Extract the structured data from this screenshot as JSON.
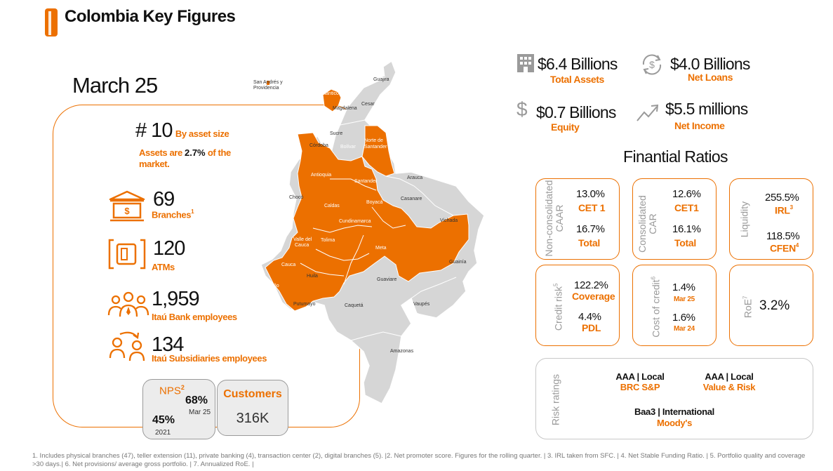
{
  "header": {
    "title": "Colombia Key Figures"
  },
  "date": "March 25",
  "rank": {
    "value": "# 10",
    "label": "By asset size",
    "share_prefix": "Assets are ",
    "share_value": "2.7%",
    "share_suffix": " of the",
    "share_line2": "market."
  },
  "branches": {
    "value": "69",
    "label": "Branches",
    "note": "1"
  },
  "atms": {
    "value": "120",
    "label": "ATMs"
  },
  "employees": {
    "value": "1,959",
    "label": "Itaú Bank employees"
  },
  "subsidiaries": {
    "value": "134",
    "label": "Itaú Subsidiaries employees"
  },
  "nps": {
    "label": "NPS",
    "note": "2",
    "current": "68%",
    "current_date": "Mar 25",
    "past": "45%",
    "past_date": "2021"
  },
  "customers": {
    "label": "Customers",
    "value": "316K"
  },
  "kpis": {
    "total_assets": {
      "value": "$6.4 Billions",
      "label": "Total Assets"
    },
    "net_loans": {
      "value": "$4.0 Billions",
      "label": "Net Loans"
    },
    "equity": {
      "value": "$0.7 Billions",
      "label": "Equity"
    },
    "net_income": {
      "value": "$5.5 millions",
      "label": "Net Income"
    }
  },
  "ratios_title": "Finantial Ratios",
  "ratios": {
    "nonconsolidated": {
      "label_line1": "Non-consolidated",
      "label_line2": "CAAR",
      "v1": "13.0%",
      "l1": "CET 1",
      "v2": "16.7%",
      "l2": "Total"
    },
    "consolidated": {
      "label_line1": "Consolidated",
      "label_line2": "CAR",
      "v1": "12.6%",
      "l1": "CET1",
      "v2": "16.1%",
      "l2": "Total"
    },
    "liquidity": {
      "label": "Liquidity",
      "v1": "255.5%",
      "l1": "IRL",
      "n1": "3",
      "v2": "118.5%",
      "l2": "CFEN",
      "n2": "4"
    },
    "credit_risk": {
      "label": "Credit risk",
      "note": "5",
      "v1": "122.2%",
      "l1": "Coverage",
      "v2": "4.4%",
      "l2": "PDL"
    },
    "cost_of_credit": {
      "label": "Cost of credit",
      "note": "6",
      "v1": "1.4%",
      "l1": "Mar 25",
      "v2": "1.6%",
      "l2": "Mar 24"
    },
    "roe": {
      "label": "RoE",
      "note": "7",
      "value": "3.2%"
    }
  },
  "risk_ratings": {
    "label": "Risk ratings",
    "r1": {
      "rating": "AAA | Local",
      "agency": "BRC S&P"
    },
    "r2": {
      "rating": "AAA | Local",
      "agency": "Value & Risk"
    },
    "r3": {
      "rating": "Baa3 | International",
      "agency": "Moody's"
    }
  },
  "map_labels": {
    "san_andres": "San Andrés y",
    "san_andres2": "Providencia",
    "guajira": "Guajira",
    "atlantico": "Atlántico",
    "magdalena": "Magdalena",
    "cesar": "Cesar",
    "sucre": "Sucre",
    "cordoba": "Córdoba",
    "bolivar": "Bolívar",
    "norte": "Norte de",
    "norte2": "Santander",
    "antioquia": "Antioquia",
    "santander": "Santander",
    "arauca": "Arauca",
    "choco": "Chocó",
    "casanare": "Casanare",
    "boyaca": "Boyacá",
    "caldas": "Caldas",
    "cundinamarca": "Cundinamarca",
    "vichada": "Vichada",
    "valle": "Valle del",
    "valle2": "Cauca",
    "tolima": "Tolima",
    "meta": "Meta",
    "guainia": "Guainía",
    "cauca": "Cauca",
    "huila": "Huila",
    "guaviare": "Guaviare",
    "narino": "Nariño",
    "putumayo": "Putumayo",
    "caqueta": "Caquetá",
    "vaupes": "Vaupés",
    "amazonas": "Amazonas"
  },
  "footnote": "1. Includes physical branches (47), teller extension (11), private banking (4), transaction center (2), digital branches (5). |2. Net promoter score. Figures for the rolling quarter. | 3. IRL taken from SFC. | 4. Net Stable Funding Ratio. | 5. Portfolio quality and coverage >30 days.| 6. Net provisions/ average gross portfolio. | 7. Annualized RoE. |",
  "colors": {
    "accent": "#ec7000",
    "map_gray": "#d6d6d6",
    "border_gray": "#9a9a9a"
  }
}
